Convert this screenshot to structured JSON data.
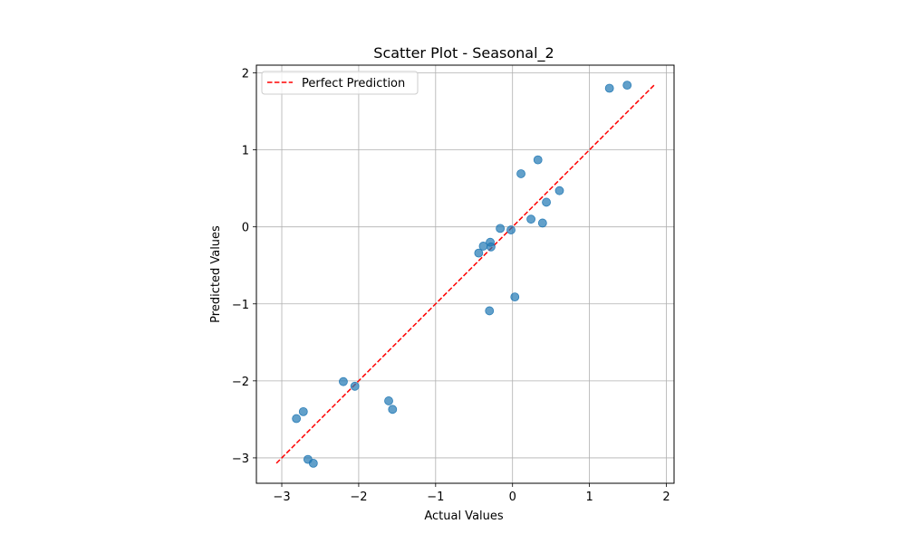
{
  "chart_data": {
    "type": "scatter",
    "title": "Scatter Plot - Seasonal_2",
    "xlabel": "Actual Values",
    "ylabel": "Predicted Values",
    "xlim": [
      -3.33,
      2.1
    ],
    "ylim": [
      -3.33,
      2.1
    ],
    "xticks": [
      -3,
      -2,
      -1,
      0,
      1,
      2
    ],
    "yticks": [
      -3,
      -2,
      -1,
      0,
      1,
      2
    ],
    "xtick_labels": [
      "−3",
      "−2",
      "−1",
      "0",
      "1",
      "2"
    ],
    "ytick_labels": [
      "−3",
      "−2",
      "−1",
      "0",
      "1",
      "2"
    ],
    "grid": true,
    "legend_position": "top-left",
    "series": [
      {
        "name": "",
        "color": "#1f77b4",
        "points": [
          {
            "x": 1.26,
            "y": 1.8
          },
          {
            "x": 1.49,
            "y": 1.84
          },
          {
            "x": 0.33,
            "y": 0.87
          },
          {
            "x": 0.11,
            "y": 0.69
          },
          {
            "x": 0.61,
            "y": 0.47
          },
          {
            "x": 0.44,
            "y": 0.32
          },
          {
            "x": 0.24,
            "y": 0.1
          },
          {
            "x": 0.39,
            "y": 0.05
          },
          {
            "x": -0.16,
            "y": -0.02
          },
          {
            "x": -0.02,
            "y": -0.04
          },
          {
            "x": -0.29,
            "y": -0.2
          },
          {
            "x": -0.38,
            "y": -0.25
          },
          {
            "x": -0.28,
            "y": -0.26
          },
          {
            "x": -0.44,
            "y": -0.34
          },
          {
            "x": 0.03,
            "y": -0.91
          },
          {
            "x": -0.3,
            "y": -1.09
          },
          {
            "x": -2.2,
            "y": -2.01
          },
          {
            "x": -2.05,
            "y": -2.07
          },
          {
            "x": -1.61,
            "y": -2.26
          },
          {
            "x": -1.56,
            "y": -2.37
          },
          {
            "x": -2.72,
            "y": -2.4
          },
          {
            "x": -2.81,
            "y": -2.49
          },
          {
            "x": -2.66,
            "y": -3.02
          },
          {
            "x": -2.59,
            "y": -3.07
          }
        ]
      }
    ],
    "reference_line": {
      "name": "Perfect Prediction",
      "color": "#ff0000",
      "style": "dashed",
      "x": [
        -3.07,
        1.84
      ],
      "y": [
        -3.07,
        1.84
      ]
    }
  }
}
